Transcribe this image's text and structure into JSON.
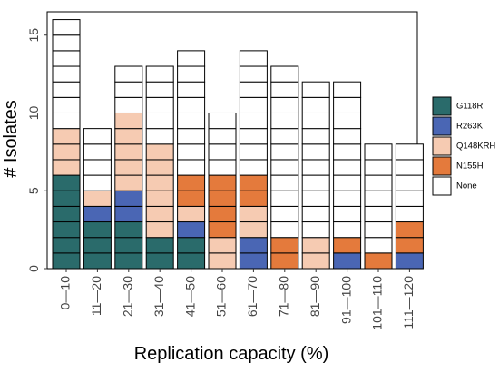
{
  "chart_data": {
    "type": "bar",
    "stacked": true,
    "style": "stacked-unit-blocks",
    "title": "",
    "xlabel": "Replication capacity (%)",
    "ylabel": "# Isolates",
    "categories": [
      "0—10",
      "11—20",
      "21—30",
      "31—40",
      "41—50",
      "51—60",
      "61—70",
      "71—80",
      "81—90",
      "91—100",
      "101—110",
      "111—120"
    ],
    "series": [
      {
        "name": "G118R",
        "color": "#2a6b6b",
        "values": [
          6,
          3,
          3,
          2,
          2,
          0,
          0,
          0,
          0,
          0,
          0,
          0
        ]
      },
      {
        "name": "R263K",
        "color": "#4a66b4",
        "values": [
          0,
          1,
          2,
          0,
          1,
          0,
          2,
          0,
          0,
          1,
          0,
          1
        ]
      },
      {
        "name": "Q148KRH",
        "color": "#f6cbb2",
        "values": [
          3,
          1,
          5,
          6,
          1,
          2,
          2,
          0,
          2,
          0,
          0,
          0
        ]
      },
      {
        "name": "N155H",
        "color": "#e47a3c",
        "values": [
          0,
          0,
          0,
          0,
          2,
          4,
          2,
          2,
          0,
          1,
          1,
          2
        ]
      },
      {
        "name": "None",
        "color": "#ffffff",
        "values": [
          7,
          4,
          3,
          5,
          8,
          4,
          8,
          11,
          10,
          10,
          7,
          5
        ]
      }
    ],
    "yticks": [
      0,
      5,
      10,
      15
    ],
    "ylim": [
      0,
      16.5
    ],
    "grid": false,
    "legend_position": "right"
  }
}
